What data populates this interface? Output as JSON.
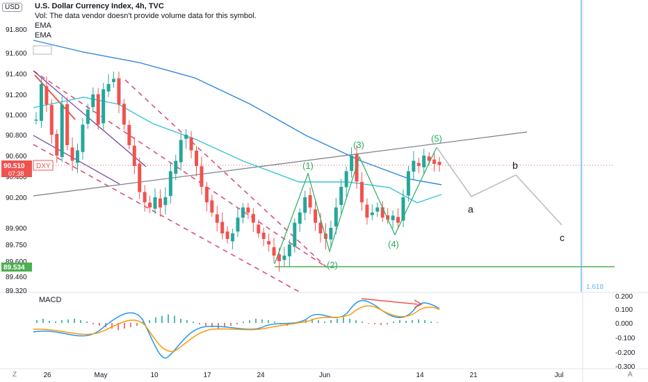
{
  "header": {
    "currency": "USD",
    "title": "U.S. Dollar Currency Index, 4h, TVC",
    "volume_note": "Vol: The data vendor doesn't provide volume data for this symbol.",
    "indicators": [
      "EMA",
      "EMA"
    ]
  },
  "macd_label": "MACD",
  "corner_left": "Z",
  "corner_right": "A",
  "colors": {
    "up": "#26a69a",
    "down": "#ef5350",
    "ema_dark": "#2e86de",
    "ema_light": "#35c3d6",
    "wave": "#27ae60",
    "support": "#4caf50",
    "dashed_channel": "#d6507c",
    "macd_line": "#2196f3",
    "signal_line": "#ff9800",
    "fib_line": "#64b5f6",
    "projection": "#bdbdbd"
  },
  "chart_data": [
    {
      "type": "candlestick",
      "title": "U.S. Dollar Currency Index, 4h, TVC",
      "y_ticks": [
        "91.800",
        "91.600",
        "91.400",
        "91.200",
        "91.000",
        "90.800",
        "90.600",
        "90.400",
        "90.200",
        "89.900",
        "89.750",
        "89.600",
        "89.460",
        "89.320"
      ],
      "x_ticks": [
        "26",
        "May",
        "10",
        "17",
        "24",
        "Jun",
        "14",
        "21",
        "Jul"
      ],
      "price_tags": [
        {
          "label": "90.510",
          "sub": "07:38",
          "symbol": "DXY",
          "value": 90.51
        },
        {
          "label": "89.534",
          "value": 89.534
        }
      ],
      "wave_labels": [
        "(1)",
        "(2)",
        "(3)",
        "(4)",
        "(5)"
      ],
      "projection_labels": [
        "a",
        "b",
        "c"
      ],
      "fib_label": "1.618",
      "close_path": [
        90.95,
        91.3,
        91.1,
        90.8,
        90.6,
        91.1,
        90.7,
        90.55,
        90.65,
        90.9,
        91.05,
        91.2,
        90.9,
        91.25,
        91.3,
        91.35,
        91.1,
        90.9,
        90.7,
        90.5,
        90.25,
        90.15,
        90.1,
        90.2,
        90.1,
        90.2,
        90.45,
        90.55,
        90.75,
        90.8,
        90.65,
        90.5,
        90.3,
        90.15,
        90.05,
        89.95,
        89.85,
        89.8,
        89.85,
        90.0,
        90.1,
        90.05,
        89.95,
        89.85,
        89.8,
        89.75,
        89.65,
        89.6,
        89.65,
        89.75,
        89.95,
        90.05,
        90.2,
        90.1,
        89.95,
        89.85,
        89.8,
        89.9,
        90.1,
        90.3,
        90.45,
        90.6,
        90.35,
        90.15,
        90.0,
        90.05,
        90.1,
        90.0,
        89.98,
        90.02,
        89.95,
        90.2,
        90.45,
        90.55,
        90.5,
        90.6,
        90.55,
        90.52,
        90.51
      ],
      "projection_path": [
        90.65,
        90.2,
        90.4,
        89.95
      ]
    },
    {
      "type": "line",
      "title": "MACD",
      "y_ticks": [
        "0.200",
        "0.100",
        "0.000",
        "-0.100",
        "-0.200",
        "-0.300"
      ]
    }
  ]
}
